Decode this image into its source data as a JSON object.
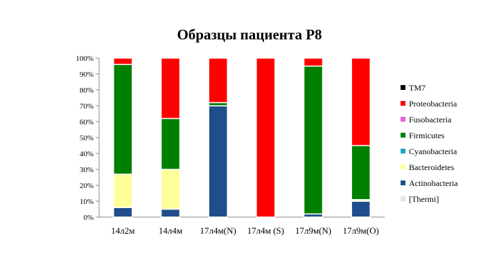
{
  "chart_data": {
    "type": "bar",
    "stacked": true,
    "percent": true,
    "title": "Образцы пациента Р8",
    "xlabel": "",
    "ylabel": "",
    "ylim": [
      0,
      100
    ],
    "y_ticks": [
      "0%",
      "10%",
      "20%",
      "30%",
      "40%",
      "50%",
      "60%",
      "70%",
      "80%",
      "90%",
      "100%"
    ],
    "grid": false,
    "legend_position": "right",
    "categories": [
      "14л2м",
      "14л4м",
      "17л4м(N)",
      "17л4м (S)",
      "17л9м(N)",
      "17л9м(О)"
    ],
    "series": [
      {
        "name": "[Thermi]",
        "color": "#dce6f2",
        "values": [
          0,
          0,
          0,
          0,
          0,
          0
        ]
      },
      {
        "name": "Actinobacteria",
        "color": "#1f4e8c",
        "values": [
          6,
          5,
          70,
          0,
          2,
          10
        ]
      },
      {
        "name": "Bacteroidetes",
        "color": "#ffff99",
        "values": [
          21,
          25,
          0,
          0,
          0,
          1
        ]
      },
      {
        "name": "Cyanobacteria",
        "color": "#1aa6c9",
        "values": [
          0,
          0,
          0,
          0,
          0,
          0
        ]
      },
      {
        "name": "Firmicutes",
        "color": "#008000",
        "values": [
          69,
          32,
          2,
          0,
          93,
          34
        ]
      },
      {
        "name": "Fusobacteria",
        "color": "#e066e0",
        "values": [
          0,
          0,
          0,
          0,
          0,
          0
        ]
      },
      {
        "name": "Proteobacteria",
        "color": "#ff0000",
        "values": [
          4,
          38,
          28,
          100,
          5,
          55
        ]
      },
      {
        "name": "TM7",
        "color": "#000000",
        "values": [
          0,
          0,
          0,
          0,
          0,
          0
        ]
      }
    ]
  }
}
